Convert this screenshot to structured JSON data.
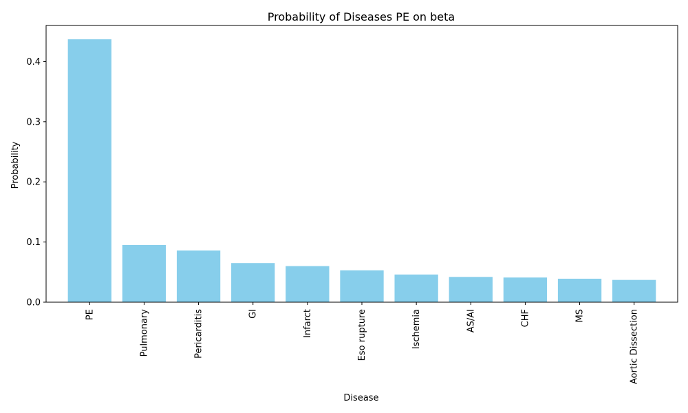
{
  "chart_data": {
    "type": "bar",
    "title": "Probability of Diseases PE on beta",
    "xlabel": "Disease",
    "ylabel": "Probability",
    "categories": [
      "PE",
      "Pulmonary",
      "Pericarditis",
      "GI",
      "Infarct",
      "Eso rupture",
      "Ischemia",
      "AS/AI",
      "CHF",
      "MS",
      "Aortic Dissection"
    ],
    "values": [
      0.437,
      0.095,
      0.086,
      0.065,
      0.06,
      0.053,
      0.046,
      0.042,
      0.041,
      0.039,
      0.037
    ],
    "ylim": [
      0,
      0.46
    ],
    "yticks": [
      0.0,
      0.1,
      0.2,
      0.3,
      0.4
    ],
    "ytick_labels": [
      "0.0",
      "0.1",
      "0.2",
      "0.3",
      "0.4"
    ],
    "bar_color": "#87CEEB",
    "grid": false,
    "legend": "none"
  }
}
